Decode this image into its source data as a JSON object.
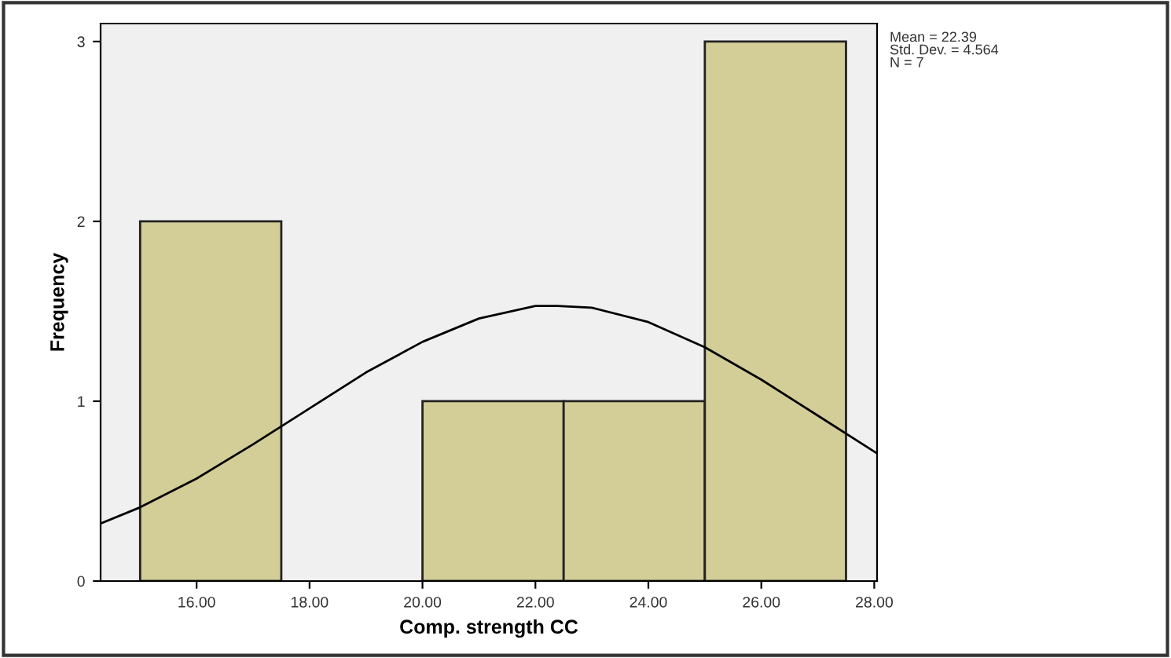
{
  "chart_data": {
    "type": "histogram",
    "xlabel": "Comp. strength CC",
    "ylabel": "Frequency",
    "series": [
      {
        "bins": [
          15,
          17.5,
          20,
          22.5,
          25,
          27.5
        ],
        "values": [
          2,
          0,
          1,
          1,
          3
        ],
        "color": "#d3ce97"
      },
      {
        "type": "line",
        "color": "#000000",
        "x": [
          14.3,
          15,
          16,
          17,
          18,
          19,
          20,
          21,
          22,
          22.39,
          23,
          24,
          25,
          26,
          27,
          28,
          28.05
        ],
        "values": [
          0.32,
          0.41,
          0.57,
          0.76,
          0.96,
          1.16,
          1.33,
          1.46,
          1.53,
          1.53,
          1.52,
          1.44,
          1.3,
          1.12,
          0.92,
          0.72,
          0.71
        ]
      }
    ],
    "xlim": [
      14.3,
      28.05
    ],
    "ylim": [
      0,
      3.1
    ],
    "xticks": [
      {
        "value": 16,
        "label": "16.00"
      },
      {
        "value": 18,
        "label": "18.00"
      },
      {
        "value": 20,
        "label": "20.00"
      },
      {
        "value": 22,
        "label": "22.00"
      },
      {
        "value": 24,
        "label": "24.00"
      },
      {
        "value": 26,
        "label": "26.00"
      },
      {
        "value": 28,
        "label": "28.00"
      }
    ],
    "yticks": [
      0,
      1,
      2,
      3
    ],
    "annotations": [
      "Mean = 22.39\nStd. Dev. = 4.564\nN = 7"
    ],
    "grid": false,
    "legend": false
  }
}
